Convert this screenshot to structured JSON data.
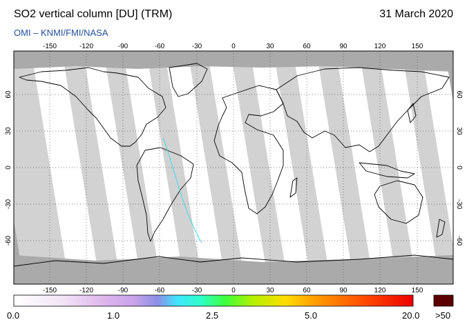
{
  "header": {
    "title": "SO2 vertical column [DU] (TRM)",
    "date": "31 March 2020",
    "credit": "OMI  –  KNMI/FMI/NASA"
  },
  "map": {
    "lon_ticks": [
      "-150",
      "-120",
      "-90",
      "-60",
      "-30",
      "0",
      "30",
      "60",
      "90",
      "120",
      "150"
    ],
    "lat_ticks": [
      "60",
      "30",
      "0",
      "-30",
      "-60"
    ],
    "colors": {
      "no_data": "#aaaaaa",
      "swath": "#ffffff",
      "gap": "#d2d2d2",
      "land_outline": "#000000",
      "grid": "#555555"
    }
  },
  "colorbar": {
    "labels": [
      "0.0",
      "1.0",
      "2.5",
      "5.0",
      "20.0"
    ],
    "overflow_label": ">50",
    "overflow_color": "#5a0000"
  }
}
